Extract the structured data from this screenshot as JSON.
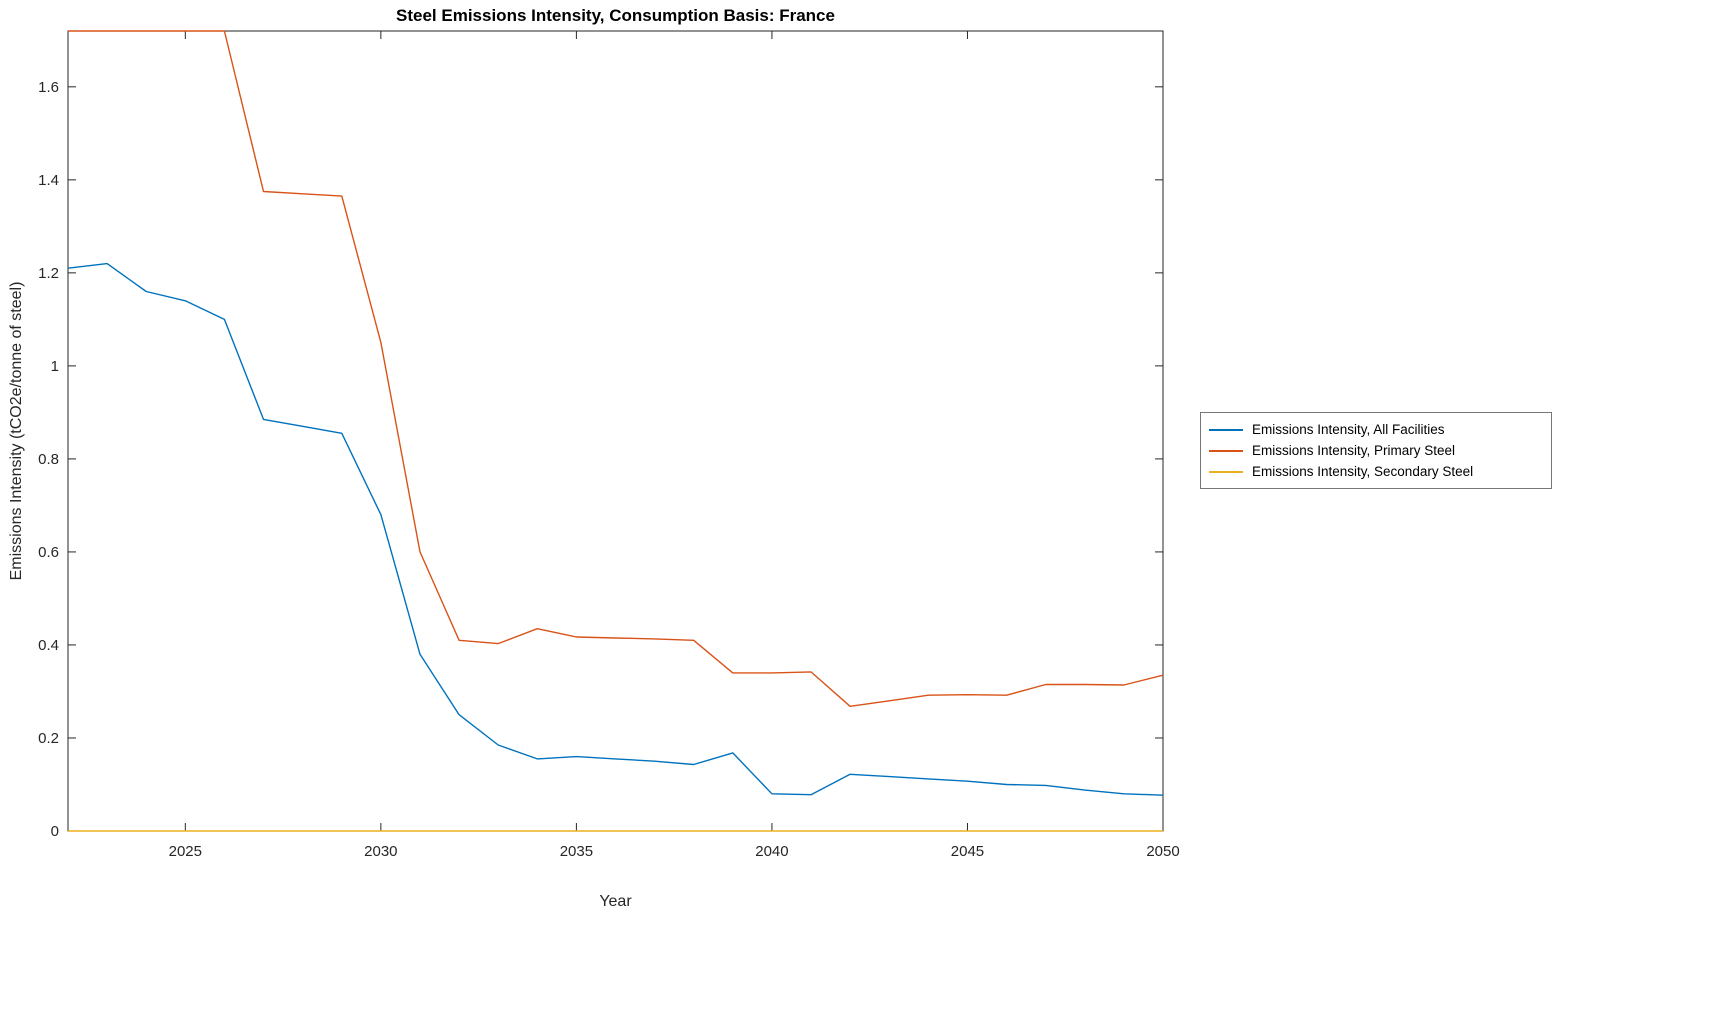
{
  "chart_data": {
    "type": "line",
    "title": "Steel Emissions Intensity, Consumption Basis: France",
    "xlabel": "Year",
    "ylabel": "Emissions Intensity (tCO2e/tonne of steel)",
    "grid": false,
    "legend_position": "right-outside",
    "xlim": [
      2022,
      2050
    ],
    "ylim": [
      0,
      1.72
    ],
    "xticks": [
      2025,
      2030,
      2035,
      2040,
      2045,
      2050
    ],
    "xtick_labels": [
      "2025",
      "2030",
      "2035",
      "2040",
      "2045",
      "2050"
    ],
    "yticks": [
      0,
      0.2,
      0.4,
      0.6,
      0.8,
      1.0,
      1.2,
      1.4,
      1.6
    ],
    "ytick_labels": [
      "0",
      "0.2",
      "0.4",
      "0.6",
      "0.8",
      "1",
      "1.2",
      "1.4",
      "1.6"
    ],
    "x": [
      2022,
      2023,
      2024,
      2025,
      2026,
      2027,
      2028,
      2029,
      2030,
      2031,
      2032,
      2033,
      2034,
      2035,
      2036,
      2037,
      2038,
      2039,
      2040,
      2041,
      2042,
      2043,
      2044,
      2045,
      2046,
      2047,
      2048,
      2049,
      2050
    ],
    "series": [
      {
        "name": "Emissions Intensity, All Facilities",
        "color": "#0072BD",
        "values": [
          1.21,
          1.22,
          1.16,
          1.14,
          1.1,
          0.885,
          0.87,
          0.855,
          0.68,
          0.38,
          0.25,
          0.185,
          0.155,
          0.16,
          0.155,
          0.15,
          0.143,
          0.168,
          0.08,
          0.078,
          0.122,
          0.117,
          0.112,
          0.107,
          0.1,
          0.098,
          0.088,
          0.08,
          0.077
        ]
      },
      {
        "name": "Emissions Intensity, Primary Steel",
        "color": "#D95319",
        "values": [
          1.72,
          1.72,
          1.72,
          1.72,
          1.72,
          1.375,
          1.37,
          1.365,
          1.05,
          0.6,
          0.41,
          0.403,
          0.435,
          0.417,
          0.415,
          0.413,
          0.41,
          0.34,
          0.34,
          0.342,
          0.268,
          0.28,
          0.292,
          0.293,
          0.292,
          0.315,
          0.315,
          0.314,
          0.335
        ]
      },
      {
        "name": "Emissions Intensity, Secondary Steel",
        "color": "#EDB120",
        "values": [
          0,
          0,
          0,
          0,
          0,
          0,
          0,
          0,
          0,
          0,
          0,
          0,
          0,
          0,
          0,
          0,
          0,
          0,
          0,
          0,
          0,
          0,
          0,
          0,
          0,
          0,
          0,
          0,
          0
        ]
      }
    ]
  }
}
